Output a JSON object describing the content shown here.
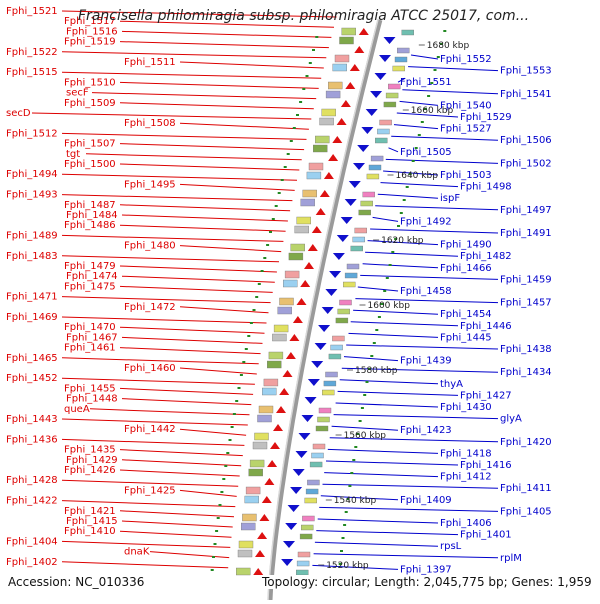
{
  "header": {
    "title": "Francisella philomiragia subsp. philomiragia ATCC 25017, com..."
  },
  "footer": {
    "accession": "Accession: NC_010336",
    "topology": "Topology: circular; Length: 2,045,775 bp; Genes: 1,959"
  },
  "colors": {
    "forward_strand": "#dd1111",
    "reverse_strand": "#1010cc",
    "backbone": "#9a9a9a",
    "tick_dots": "#228822",
    "bp_label": "#222222"
  },
  "bp_marks": [
    "1680 kbp",
    "1660 kbp",
    "1640 kbp",
    "1620 kbp",
    "1600 kbp",
    "1580 kbp",
    "1560 kbp",
    "1540 kbp",
    "1520 kbp"
  ],
  "left_labels": [
    "Fphi_1521",
    "Fphi_1517",
    "Fphi_1516",
    "Fphi_1519",
    "Fphi_1522",
    "Fphi_1511",
    "Fphi_1515",
    "Fphi_1510",
    "secF",
    "Fphi_1509",
    "secD",
    "Fphi_1508",
    "Fphi_1512",
    "Fphi_1507",
    "tgt",
    "Fphi_1500",
    "Fphi_1494",
    "Fphi_1495",
    "Fphi_1493",
    "Fphi_1487",
    "Fphi_1484",
    "Fphi_1486",
    "Fphi_1489",
    "Fphi_1480",
    "Fphi_1483",
    "Fphi_1479",
    "Fphi_1474",
    "Fphi_1475",
    "Fphi_1471",
    "Fphi_1472",
    "Fphi_1469",
    "Fphi_1470",
    "Fphi_1467",
    "Fphi_1461",
    "Fphi_1465",
    "Fphi_1460",
    "Fphi_1452",
    "Fphi_1455",
    "Fphi_1448",
    "queA",
    "Fphi_1443",
    "Fphi_1442",
    "Fphi_1436",
    "Fphi_1435",
    "Fphi_1429",
    "Fphi_1426",
    "Fphi_1428",
    "Fphi_1425",
    "Fphi_1422",
    "Fphi_1421",
    "Fphi_1415",
    "Fphi_1410",
    "Fphi_1404",
    "dnaK",
    "Fphi_1402"
  ],
  "right_labels": [
    "Fphi_1552",
    "Fphi_1553",
    "Fphi_1551",
    "Fphi_1541",
    "Fphi_1540",
    "Fphi_1529",
    "Fphi_1527",
    "Fphi_1506",
    "Fphi_1505",
    "Fphi_1502",
    "Fphi_1503",
    "Fphi_1498",
    "ispF",
    "Fphi_1497",
    "Fphi_1492",
    "Fphi_1491",
    "Fphi_1490",
    "Fphi_1482",
    "Fphi_1466",
    "Fphi_1459",
    "Fphi_1458",
    "Fphi_1457",
    "Fphi_1454",
    "Fphi_1446",
    "Fphi_1445",
    "Fphi_1438",
    "Fphi_1439",
    "Fphi_1434",
    "thyA",
    "Fphi_1427",
    "Fphi_1430",
    "glyA",
    "Fphi_1423",
    "Fphi_1420",
    "Fphi_1418",
    "Fphi_1416",
    "Fphi_1412",
    "Fphi_1411",
    "Fphi_1409",
    "Fphi_1405",
    "Fphi_1406",
    "Fphi_1401",
    "rpsL",
    "rplM",
    "Fphi_1397"
  ]
}
